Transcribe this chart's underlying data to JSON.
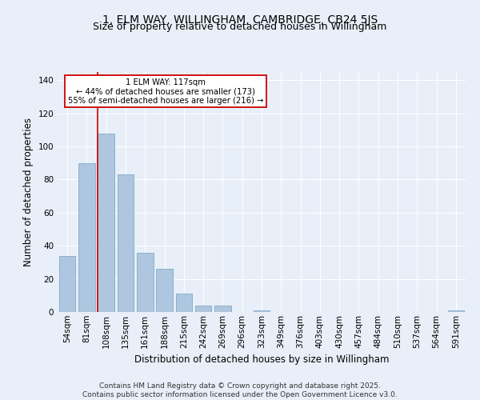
{
  "title": "1, ELM WAY, WILLINGHAM, CAMBRIDGE, CB24 5JS",
  "subtitle": "Size of property relative to detached houses in Willingham",
  "xlabel": "Distribution of detached houses by size in Willingham",
  "ylabel": "Number of detached properties",
  "categories": [
    "54sqm",
    "81sqm",
    "108sqm",
    "135sqm",
    "161sqm",
    "188sqm",
    "215sqm",
    "242sqm",
    "269sqm",
    "296sqm",
    "323sqm",
    "349sqm",
    "376sqm",
    "403sqm",
    "430sqm",
    "457sqm",
    "484sqm",
    "510sqm",
    "537sqm",
    "564sqm",
    "591sqm"
  ],
  "values": [
    34,
    90,
    108,
    83,
    36,
    26,
    11,
    4,
    4,
    0,
    1,
    0,
    0,
    0,
    0,
    0,
    0,
    0,
    0,
    0,
    1
  ],
  "bar_color": "#aec6df",
  "bar_edge_color": "#8ab0cc",
  "background_color": "#e8eff8",
  "grid_color": "#ffffff",
  "vline_x_index": 2,
  "vline_color": "#cc0000",
  "annotation_text": "1 ELM WAY: 117sqm\n← 44% of detached houses are smaller (173)\n55% of semi-detached houses are larger (216) →",
  "annotation_box_color": "#ffffff",
  "annotation_box_edge": "#cc0000",
  "footer": "Contains HM Land Registry data © Crown copyright and database right 2025.\nContains public sector information licensed under the Open Government Licence v3.0.",
  "ylim": [
    0,
    145
  ],
  "yticks": [
    0,
    20,
    40,
    60,
    80,
    100,
    120,
    140
  ],
  "title_fontsize": 10,
  "subtitle_fontsize": 9,
  "ylabel_fontsize": 8.5,
  "xlabel_fontsize": 8.5,
  "tick_fontsize": 7.5,
  "footer_fontsize": 6.5
}
